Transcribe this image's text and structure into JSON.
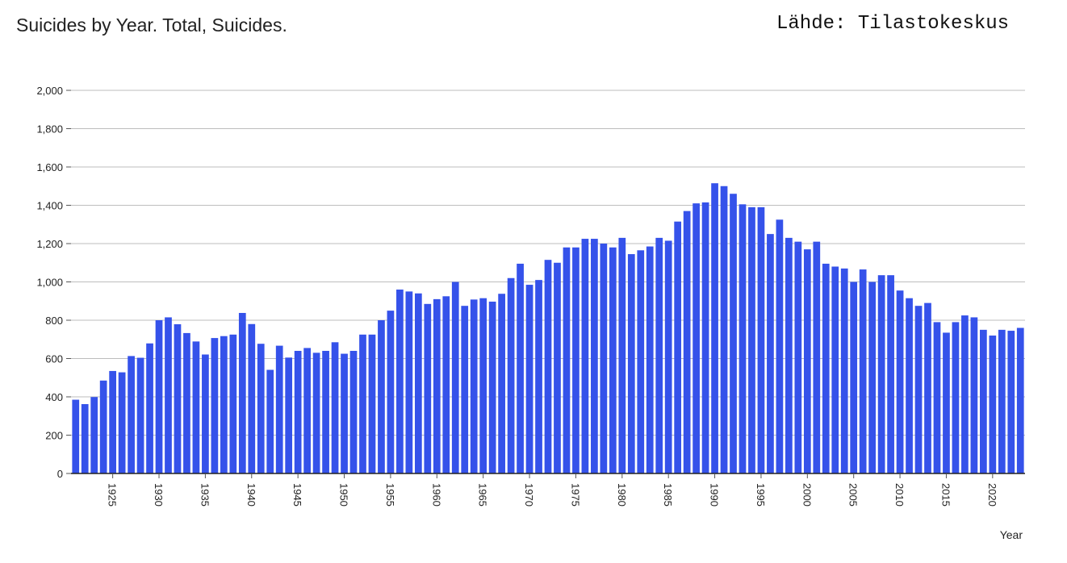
{
  "header": {
    "title": "Suicides by Year. Total, Suicides.",
    "source": "Lähde: Tilastokeskus"
  },
  "chart_data": {
    "type": "bar",
    "title": "Suicides by Year. Total, Suicides.",
    "xlabel": "Year",
    "ylabel": "",
    "ylim": [
      0,
      2000
    ],
    "yticks": [
      0,
      200,
      400,
      600,
      800,
      1000,
      1200,
      1400,
      1600,
      1800,
      2000
    ],
    "ytick_labels": [
      "0",
      "200",
      "400",
      "600",
      "800",
      "1,000",
      "1,200",
      "1,400",
      "1,600",
      "1,800",
      "2,000"
    ],
    "xtick_labels": [
      "1925",
      "1930",
      "1935",
      "1940",
      "1945",
      "1950",
      "1955",
      "1960",
      "1965",
      "1970",
      "1975",
      "1980",
      "1985",
      "1990",
      "1995",
      "2000",
      "2005",
      "2010",
      "2015",
      "2020"
    ],
    "grid": true,
    "legend": "none",
    "bar_color": "#3552ea",
    "categories": [
      1921,
      1922,
      1923,
      1924,
      1925,
      1926,
      1927,
      1928,
      1929,
      1930,
      1931,
      1932,
      1933,
      1934,
      1935,
      1936,
      1937,
      1938,
      1939,
      1940,
      1941,
      1942,
      1943,
      1944,
      1945,
      1946,
      1947,
      1948,
      1949,
      1950,
      1951,
      1952,
      1953,
      1954,
      1955,
      1956,
      1957,
      1958,
      1959,
      1960,
      1961,
      1962,
      1963,
      1964,
      1965,
      1966,
      1967,
      1968,
      1969,
      1970,
      1971,
      1972,
      1973,
      1974,
      1975,
      1976,
      1977,
      1978,
      1979,
      1980,
      1981,
      1982,
      1983,
      1984,
      1985,
      1986,
      1987,
      1988,
      1989,
      1990,
      1991,
      1992,
      1993,
      1994,
      1995,
      1996,
      1997,
      1998,
      1999,
      2000,
      2001,
      2002,
      2003,
      2004,
      2005,
      2006,
      2007,
      2008,
      2009,
      2010,
      2011,
      2012,
      2013,
      2014,
      2015,
      2016,
      2017,
      2018,
      2019,
      2020,
      2021,
      2022,
      2023
    ],
    "values": [
      385,
      362,
      399,
      485,
      535,
      528,
      613,
      604,
      679,
      800,
      815,
      779,
      733,
      689,
      621,
      707,
      717,
      725,
      838,
      780,
      677,
      541,
      667,
      605,
      640,
      655,
      630,
      640,
      685,
      625,
      640,
      725,
      725,
      800,
      850,
      960,
      950,
      940,
      885,
      910,
      925,
      1000,
      875,
      908,
      915,
      897,
      938,
      1020,
      1095,
      985,
      1010,
      1115,
      1100,
      1180,
      1180,
      1225,
      1225,
      1200,
      1180,
      1230,
      1145,
      1165,
      1185,
      1230,
      1215,
      1315,
      1370,
      1410,
      1415,
      1515,
      1500,
      1460,
      1405,
      1390,
      1390,
      1250,
      1325,
      1230,
      1210,
      1170,
      1210,
      1095,
      1080,
      1070,
      1000,
      1065,
      1000,
      1035,
      1035,
      955,
      915,
      875,
      890,
      790,
      735,
      790,
      825,
      815,
      750,
      720,
      750,
      745,
      760
    ]
  }
}
